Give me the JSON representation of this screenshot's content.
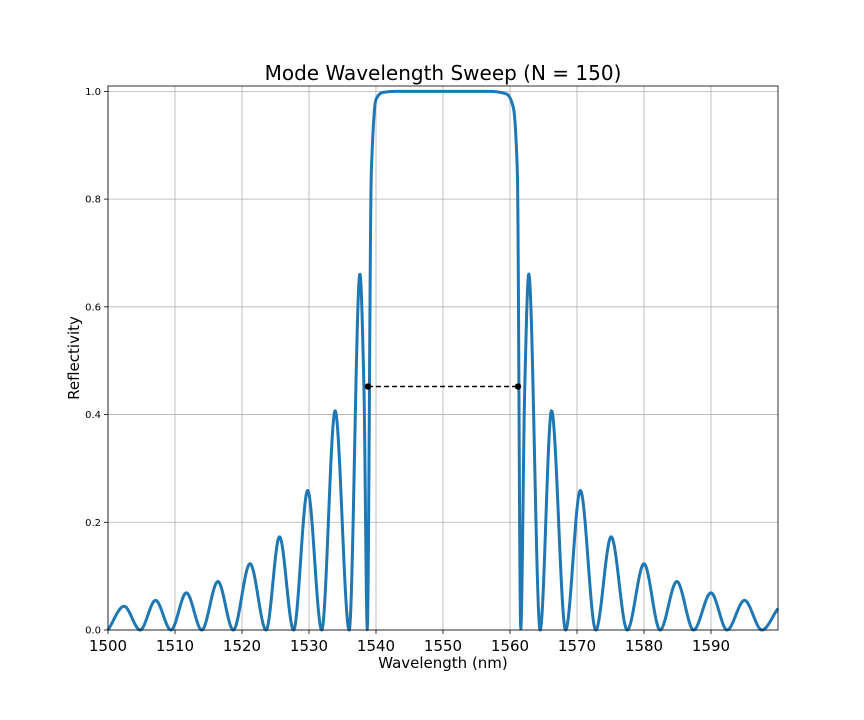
{
  "chart_data": {
    "type": "line",
    "title": "Mode Wavelength Sweep (N = 150)",
    "xlabel": "Wavelength (nm)",
    "ylabel": "Reflectivity",
    "xlim": [
      1500,
      1600
    ],
    "ylim": [
      0,
      1.01
    ],
    "xticks": [
      1500,
      1510,
      1520,
      1530,
      1540,
      1550,
      1560,
      1570,
      1580,
      1590
    ],
    "xtick_labels": [
      "1500",
      "1510",
      "1520",
      "1530",
      "1540",
      "1550",
      "1560",
      "1570",
      "1580",
      "1590"
    ],
    "yticks": [
      0,
      0.2,
      0.4,
      0.6,
      0.8,
      1.0
    ],
    "ytick_labels": [
      "0.0",
      "0.2",
      "0.4",
      "0.6",
      "0.8",
      "1.0"
    ],
    "grid": true,
    "series": [
      {
        "color": "#1f77b4",
        "style": "solid",
        "x": [
          1500,
          1502.4,
          1504.8,
          1507.1,
          1509.4,
          1511.7,
          1514,
          1516.4,
          1518.7,
          1521.2,
          1523.6,
          1525.6,
          1527.7,
          1529.8,
          1531.9,
          1533.9,
          1536,
          1537.6,
          1538.2,
          1538.7,
          1539.3,
          1540,
          1541,
          1543,
          1550,
          1557,
          1559.5,
          1560.5,
          1561.1,
          1561.6,
          1562.2,
          1562.8,
          1564.5,
          1566.2,
          1568.3,
          1570.5,
          1572.8,
          1575.1,
          1577.5,
          1580,
          1582.4,
          1584.9,
          1587.4,
          1590,
          1592.4,
          1595,
          1597.6,
          1600
        ],
        "y": [
          0,
          0.044,
          0,
          0.055,
          0,
          0.069,
          0,
          0.09,
          0,
          0.123,
          0,
          0.173,
          0,
          0.259,
          0,
          0.407,
          0,
          0.661,
          0.45,
          0,
          0.85,
          0.985,
          0.998,
          1.0,
          1.0,
          1.0,
          0.995,
          0.97,
          0.85,
          0,
          0.45,
          0.661,
          0,
          0.407,
          0,
          0.259,
          0,
          0.173,
          0,
          0.123,
          0,
          0.09,
          0,
          0.069,
          0,
          0.055,
          0,
          0.04
        ]
      },
      {
        "color": "#000000",
        "style": "dashed",
        "markers": true,
        "x": [
          1538.8,
          1561.2
        ],
        "y": [
          0.452,
          0.452
        ]
      }
    ]
  }
}
